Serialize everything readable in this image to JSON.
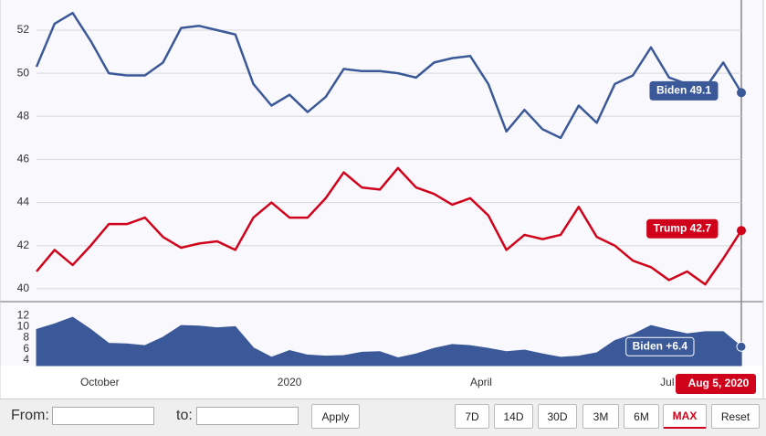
{
  "chart_data": [
    {
      "type": "line",
      "x": [
        0,
        1,
        2,
        3,
        4,
        5,
        6,
        7,
        8,
        9,
        10,
        11,
        12,
        13,
        14,
        15,
        16,
        17,
        18,
        19,
        20,
        21,
        22,
        23,
        24,
        25,
        26,
        27,
        28,
        29,
        30,
        31,
        32,
        33,
        34,
        35,
        36,
        37,
        38,
        39
      ],
      "xlim": [
        0,
        39
      ],
      "xticks": [
        {
          "value": 3.5,
          "label": "October"
        },
        {
          "value": 14,
          "label": "2020"
        },
        {
          "value": 24.6,
          "label": "April"
        },
        {
          "value": 34.9,
          "label": "Jul"
        }
      ],
      "ylim": [
        39.4,
        53.4
      ],
      "yticks": [
        40,
        42,
        44,
        46,
        48,
        50,
        52
      ],
      "grid": true,
      "series": [
        {
          "name": "Biden",
          "color": "#3b5998",
          "values": [
            50.3,
            52.3,
            52.8,
            51.5,
            50.0,
            49.9,
            49.9,
            50.5,
            52.1,
            52.2,
            52.0,
            51.8,
            49.5,
            48.5,
            49.0,
            48.2,
            48.9,
            50.2,
            50.1,
            50.1,
            50.0,
            49.8,
            50.5,
            50.7,
            50.8,
            49.5,
            47.3,
            48.3,
            47.4,
            47.0,
            48.5,
            47.7,
            49.5,
            49.9,
            51.2,
            49.8,
            49.5,
            49.3,
            50.5,
            49.1
          ]
        },
        {
          "name": "Trump",
          "color": "#d0021b",
          "values": [
            40.8,
            41.8,
            41.1,
            42.0,
            43.0,
            43.0,
            43.3,
            42.4,
            41.9,
            42.1,
            42.2,
            41.8,
            43.3,
            44.0,
            43.3,
            43.3,
            44.2,
            45.4,
            44.7,
            44.6,
            45.6,
            44.7,
            44.4,
            43.9,
            44.2,
            43.4,
            41.8,
            42.5,
            42.3,
            42.5,
            43.8,
            42.4,
            42.0,
            41.3,
            41.0,
            40.4,
            40.8,
            40.2,
            41.4,
            42.7
          ]
        }
      ],
      "annotations": [
        "Biden 49.1",
        "Trump 42.7"
      ],
      "date_label": "Aug 5, 2020"
    },
    {
      "type": "area",
      "ylim": [
        3,
        14
      ],
      "yticks": [
        4,
        6,
        8,
        10,
        12
      ],
      "series": [
        {
          "name": "Biden",
          "color": "#3b5998",
          "values": [
            9.5,
            10.5,
            11.7,
            9.5,
            7.0,
            6.9,
            6.6,
            8.1,
            10.2,
            10.1,
            9.8,
            10.0,
            6.2,
            4.5,
            5.7,
            4.9,
            4.7,
            4.8,
            5.4,
            5.5,
            4.4,
            5.1,
            6.1,
            6.8,
            6.6,
            6.1,
            5.5,
            5.8,
            5.1,
            4.5,
            4.7,
            5.3,
            7.5,
            8.6,
            10.2,
            9.4,
            8.7,
            9.1,
            9.1,
            6.4
          ]
        }
      ],
      "annotations": [
        "Biden +6.4"
      ]
    }
  ],
  "controls": {
    "from_label": "From:",
    "to_label": "to:",
    "apply": "Apply",
    "ranges": [
      "7D",
      "14D",
      "30D",
      "3M",
      "6M",
      "MAX"
    ],
    "active_range": 5,
    "reset": "Reset"
  }
}
